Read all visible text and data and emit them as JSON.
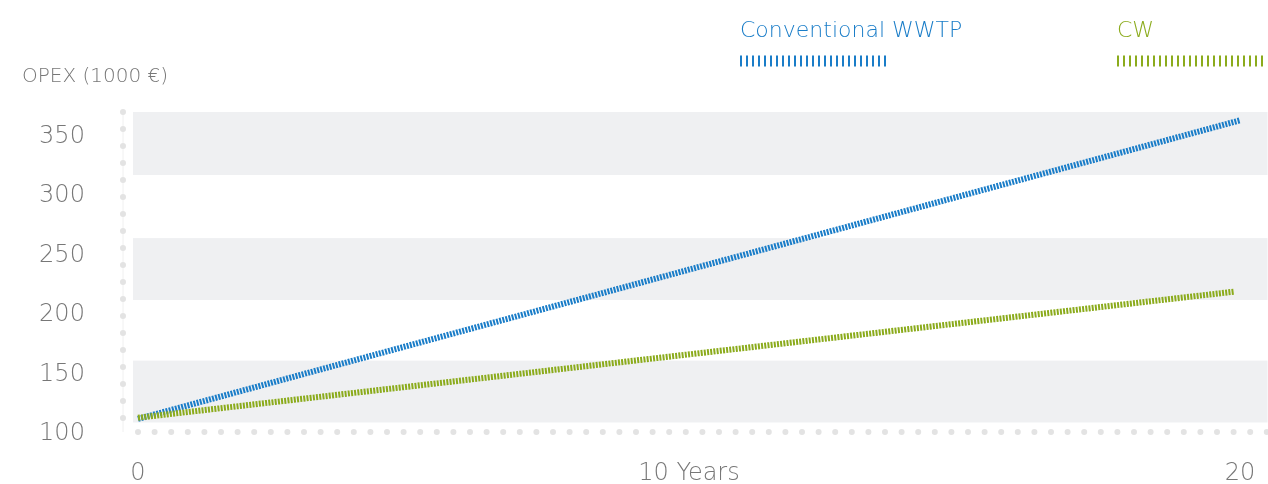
{
  "chart_data": {
    "type": "line",
    "ylabel": "OPEX (1000 €)",
    "x": [
      0,
      20
    ],
    "series": [
      {
        "name": "Conventional WWTP",
        "color": "#1a7dc8",
        "values": [
          111,
          362
        ]
      },
      {
        "name": "CW",
        "color": "#8bab1c",
        "x": [
          0,
          19.9
        ],
        "values": [
          112,
          218
        ]
      }
    ],
    "xlim": [
      0,
      20.5
    ],
    "xticks": [
      0,
      {
        "value": 10,
        "label": "10 Years"
      },
      20
    ],
    "ylim": [
      100,
      369
    ],
    "yticks": [
      100,
      150,
      200,
      250,
      300,
      350
    ],
    "bands": [
      {
        "axis": "y",
        "from": 316,
        "to": 369,
        "color": "#eff0f2"
      },
      {
        "axis": "y",
        "from": 211,
        "to": 263,
        "color": "#eff0f2"
      },
      {
        "axis": "y",
        "from": 108,
        "to": 160,
        "color": "#eff0f2"
      }
    ],
    "legend": "top right",
    "line_style": "dotted"
  }
}
